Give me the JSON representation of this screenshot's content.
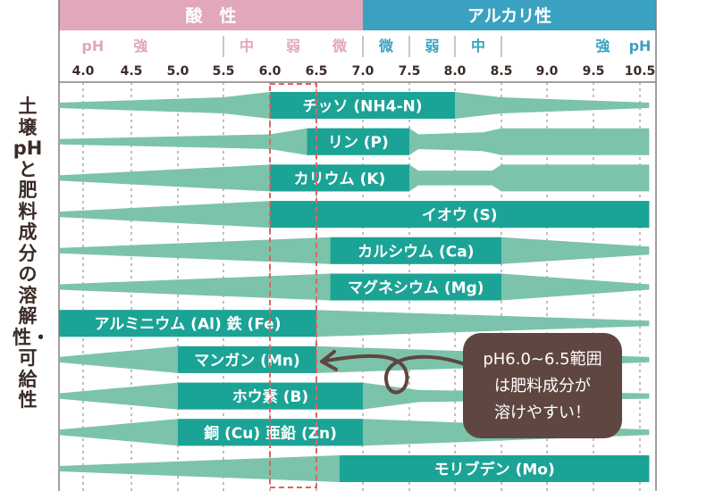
{
  "header": {
    "acid_label": "酸　性",
    "alkali_label": "アルカリ性",
    "acid_color": "#e0a7bd",
    "alkali_color": "#3aa2c0"
  },
  "strength_labels": [
    {
      "text": "pH",
      "side": "acid",
      "ph": 4.1
    },
    {
      "text": "強",
      "side": "acid",
      "ph": 4.6
    },
    {
      "text": "中",
      "side": "acid",
      "ph": 5.75
    },
    {
      "text": "弱",
      "side": "acid",
      "ph": 6.25
    },
    {
      "text": "微",
      "side": "acid",
      "ph": 6.75
    },
    {
      "text": "微",
      "side": "alkali",
      "ph": 7.25
    },
    {
      "text": "弱",
      "side": "alkali",
      "ph": 7.75
    },
    {
      "text": "中",
      "side": "alkali",
      "ph": 8.25
    },
    {
      "text": "強",
      "side": "alkali",
      "ph": 9.7
    },
    {
      "text": "pH",
      "side": "alkali",
      "ph": 10.5
    }
  ],
  "strength_dividers": [
    5.5,
    7.0,
    7.5,
    8.0,
    8.5
  ],
  "ph_ticks": [
    "4.0",
    "4.5",
    "5.0",
    "5.5",
    "6.0",
    "6.5",
    "7.0",
    "7.5",
    "8.0",
    "8.5",
    "9.0",
    "9.5",
    "10.5"
  ],
  "side_title": "土壌pHと肥料成分の溶解性・可給性",
  "nutrients": [
    {
      "label": "チッソ (NH4-N)",
      "profile": [
        [
          3.75,
          0.2
        ],
        [
          5.5,
          0.6
        ],
        [
          6.0,
          1.0
        ],
        [
          8.0,
          1.0
        ],
        [
          8.5,
          0.6
        ],
        [
          10.7,
          0.2
        ]
      ],
      "label_from": 6.0,
      "label_to": 8.0
    },
    {
      "label": "リン (P)",
      "profile": [
        [
          3.75,
          0.2
        ],
        [
          6.0,
          0.55
        ],
        [
          6.4,
          1.0
        ],
        [
          7.5,
          1.0
        ],
        [
          7.6,
          0.55
        ],
        [
          8.3,
          0.7
        ],
        [
          8.5,
          1.0
        ],
        [
          10.7,
          1.0
        ]
      ],
      "label_from": 6.4,
      "label_to": 7.5
    },
    {
      "label": "カリウム (K)",
      "profile": [
        [
          3.75,
          0.2
        ],
        [
          6.0,
          1.0
        ],
        [
          7.5,
          1.0
        ],
        [
          7.6,
          0.55
        ],
        [
          8.4,
          0.55
        ],
        [
          8.5,
          1.0
        ],
        [
          10.7,
          1.0
        ]
      ],
      "label_from": 6.0,
      "label_to": 7.5
    },
    {
      "label": "イオウ (S)",
      "profile": [
        [
          3.75,
          0.2
        ],
        [
          6.0,
          1.0
        ],
        [
          10.7,
          1.0
        ]
      ],
      "label_from": 6.0,
      "label_to": 10.7
    },
    {
      "label": "カルシウム (Ca)",
      "profile": [
        [
          3.75,
          0.2
        ],
        [
          6.65,
          1.0
        ],
        [
          8.5,
          1.0
        ],
        [
          10.7,
          0.3
        ]
      ],
      "label_from": 6.65,
      "label_to": 8.5
    },
    {
      "label": "マグネシウム (Mg)",
      "profile": [
        [
          3.75,
          0.2
        ],
        [
          6.65,
          1.0
        ],
        [
          8.5,
          1.0
        ],
        [
          10.7,
          0.2
        ]
      ],
      "label_from": 6.65,
      "label_to": 8.5
    },
    {
      "label": "アルミニウム (Al) 鉄 (Fe)",
      "profile": [
        [
          3.75,
          1.0
        ],
        [
          6.5,
          1.0
        ],
        [
          10.7,
          0.2
        ]
      ],
      "label_from": 3.75,
      "label_to": 6.5
    },
    {
      "label": "マンガン (Mn)",
      "profile": [
        [
          3.75,
          0.2
        ],
        [
          5.0,
          1.0
        ],
        [
          6.5,
          1.0
        ],
        [
          10.7,
          0.2
        ]
      ],
      "label_from": 5.0,
      "label_to": 6.5
    },
    {
      "label": "ホウ素 (B)",
      "profile": [
        [
          3.75,
          0.2
        ],
        [
          5.0,
          1.0
        ],
        [
          7.0,
          1.0
        ],
        [
          7.6,
          0.45
        ],
        [
          10.7,
          0.2
        ]
      ],
      "label_from": 5.0,
      "label_to": 7.0
    },
    {
      "label": "銅 (Cu) 亜鉛 (Zn)",
      "profile": [
        [
          3.75,
          0.2
        ],
        [
          5.0,
          1.0
        ],
        [
          7.0,
          1.0
        ],
        [
          10.7,
          0.2
        ]
      ],
      "label_from": 5.0,
      "label_to": 7.0
    },
    {
      "label": "モリブデン (Mo)",
      "profile": [
        [
          3.75,
          0.2
        ],
        [
          6.75,
          1.0
        ],
        [
          10.7,
          1.0
        ]
      ],
      "label_from": 6.75,
      "label_to": 10.7
    }
  ],
  "optimal_range": {
    "from": 6.0,
    "to": 6.5,
    "color": "#e06262"
  },
  "callout": {
    "lines": [
      "pH6.0~6.5範囲",
      "は肥料成分が",
      "溶けやすい！"
    ],
    "bg_color": "#5f4640",
    "points_to": "マンガン (Mn)"
  },
  "colors": {
    "band_light": "#7cc3ab",
    "band_dark": "#1ba396",
    "label_text": "#ffffff",
    "tick_text": "#3a2b26",
    "grid": "#8a7d78"
  }
}
